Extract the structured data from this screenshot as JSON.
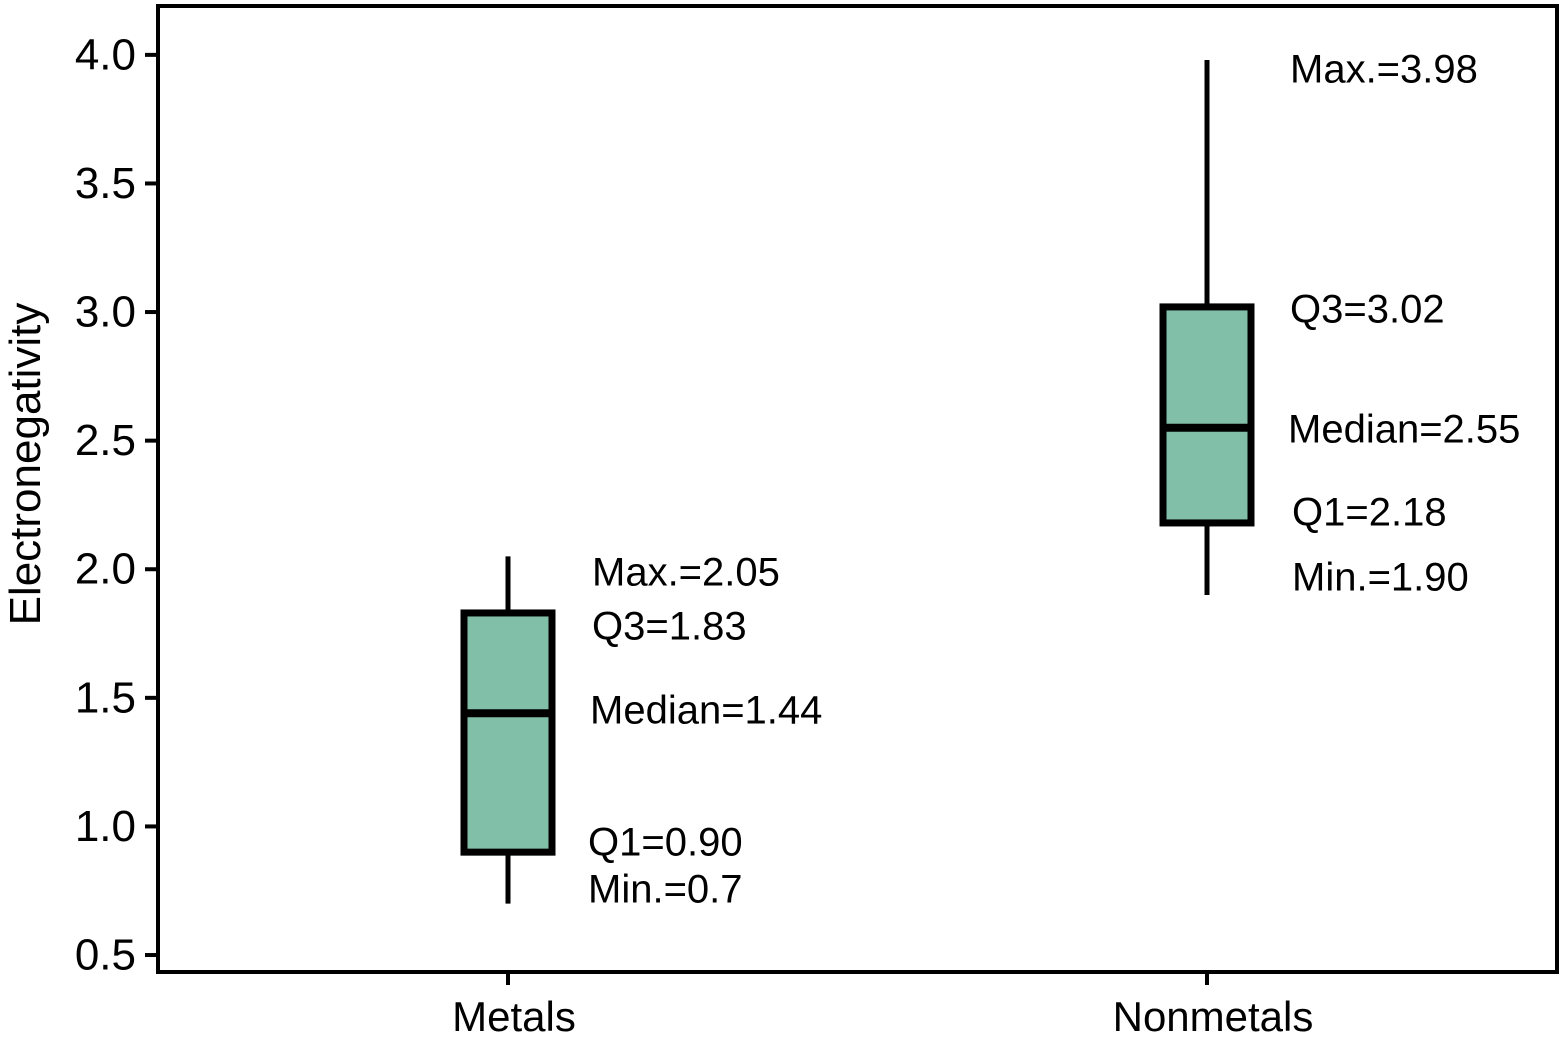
{
  "chart_data": {
    "type": "boxplot",
    "title": "",
    "xlabel": "",
    "ylabel": "Electronegativity",
    "categories": [
      "Metals",
      "Nonmetals"
    ],
    "series": [
      {
        "name": "Metals",
        "min": 0.7,
        "q1": 0.9,
        "median": 1.44,
        "q3": 1.83,
        "max": 2.05,
        "labels": {
          "max": "Max.=2.05",
          "q3": "Q3=1.83",
          "median": "Median=1.44",
          "q1": "Q1=0.90",
          "min": "Min.=0.7"
        }
      },
      {
        "name": "Nonmetals",
        "min": 1.9,
        "q1": 2.18,
        "median": 2.55,
        "q3": 3.02,
        "max": 3.98,
        "labels": {
          "max": "Max.=3.98",
          "q3": "Q3=3.02",
          "median": "Median=2.55",
          "q1": "Q1=2.18",
          "min": "Min.=1.90"
        }
      }
    ],
    "yticks": [
      4.0,
      3.5,
      3.0,
      2.5,
      2.0,
      1.5,
      1.0,
      0.5
    ],
    "ytick_labels": [
      "4.0",
      "3.5",
      "3.0",
      "2.5",
      "2.0",
      "1.5",
      "1.0",
      "0.5"
    ],
    "ylim": [
      0.434,
      4.19
    ],
    "grid": false,
    "legend_position": "none",
    "box_fill_color": "#82bfa8",
    "line_color": "#000000",
    "background_color": "#ffffff"
  }
}
